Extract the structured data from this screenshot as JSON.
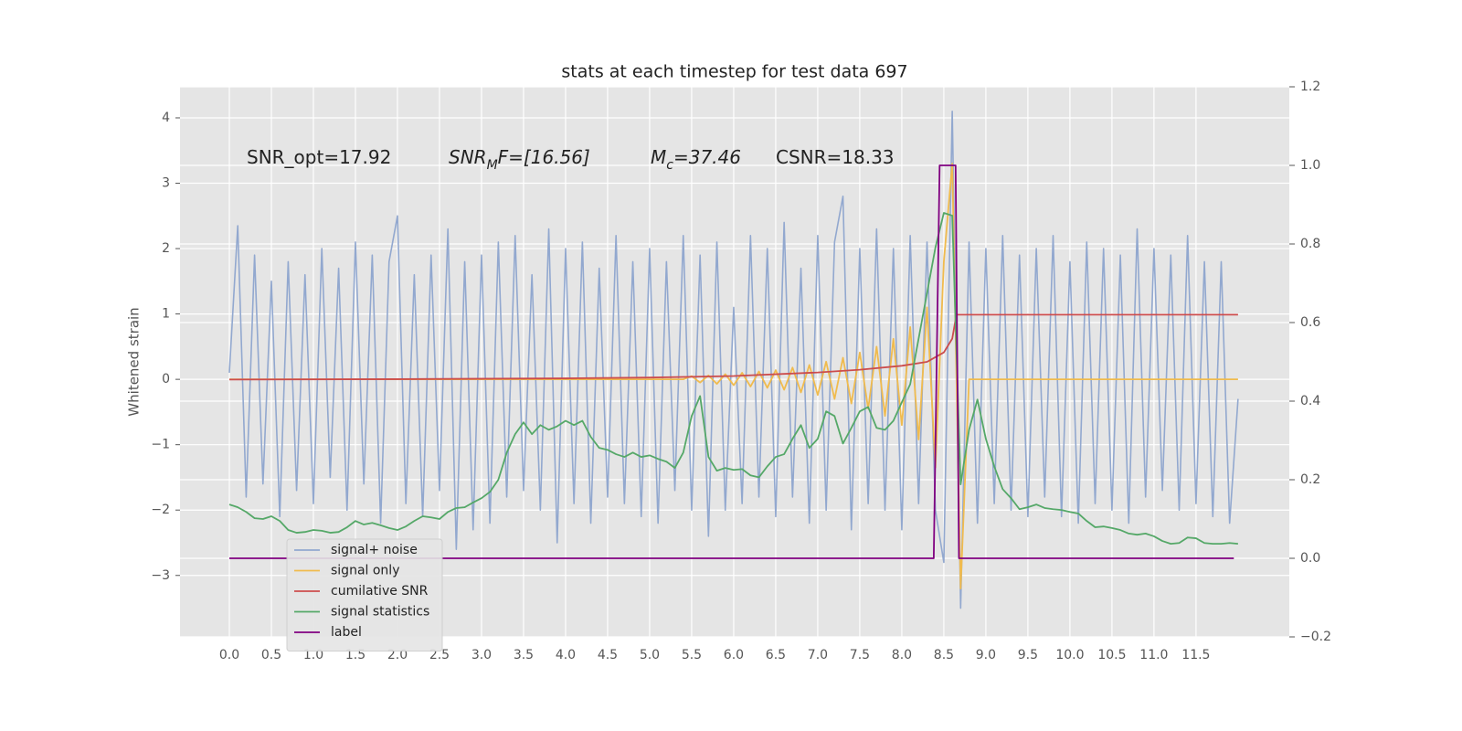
{
  "chart_data": {
    "type": "line",
    "title": "stats at each timestep for test data 697",
    "ylabel": "Whitened strain",
    "grid": true,
    "legend": "lower left",
    "xlim": [
      -0.587,
      12.61
    ],
    "ylim": [
      -3.94,
      4.475
    ],
    "y2lim": [
      -0.2,
      1.2
    ],
    "xticks": [
      {
        "value": 0,
        "label": "0.0"
      },
      0.5,
      {
        "value": 1,
        "label": "1.0"
      },
      1.5,
      {
        "value": 2,
        "label": "2.0"
      },
      2.5,
      {
        "value": 3,
        "label": "3.0"
      },
      3.5,
      {
        "value": 4,
        "label": "4.0"
      },
      4.5,
      {
        "value": 5,
        "label": "5.0"
      },
      5.5,
      {
        "value": 6,
        "label": "6.0"
      },
      6.5,
      {
        "value": 7,
        "label": "7.0"
      },
      7.5,
      {
        "value": 8,
        "label": "8.0"
      },
      8.5,
      {
        "value": 9,
        "label": "9.0"
      },
      9.5,
      {
        "value": 10,
        "label": "10.0"
      },
      10.5,
      {
        "value": 11,
        "label": "11.0"
      },
      11.5
    ],
    "yticks": [
      {
        "value": -3,
        "label": "−3"
      },
      {
        "value": -2,
        "label": "−2"
      },
      {
        "value": -1,
        "label": "−1"
      },
      0,
      1,
      2,
      3,
      4
    ],
    "y2ticks": [
      {
        "value": -0.2,
        "label": "−0.2"
      },
      {
        "value": 0,
        "label": "0.0"
      },
      0.2,
      0.4,
      0.6,
      0.8,
      {
        "value": 1,
        "label": "1.0"
      },
      1.2
    ],
    "annotations": [
      {
        "text": "SNR_opt=17.92"
      },
      {
        "text": "SNR",
        "sub": "M",
        "rest": "F=[16.56]",
        "italic": true
      },
      {
        "text": "M",
        "sub": "c",
        "rest": "=37.46",
        "italic": true
      },
      {
        "text": "CSNR=18.33"
      }
    ],
    "x": [
      0.0,
      0.1,
      0.2,
      0.3,
      0.4,
      0.5,
      0.6,
      0.7,
      0.8,
      0.9,
      1.0,
      1.1,
      1.2,
      1.3,
      1.4,
      1.5,
      1.6,
      1.7,
      1.8,
      1.9,
      2.0,
      2.1,
      2.2,
      2.3,
      2.4,
      2.5,
      2.6,
      2.7,
      2.8,
      2.9,
      3.0,
      3.1,
      3.2,
      3.3,
      3.4,
      3.5,
      3.6,
      3.7,
      3.8,
      3.9,
      4.0,
      4.1,
      4.2,
      4.3,
      4.4,
      4.5,
      4.6,
      4.7,
      4.8,
      4.9,
      5.0,
      5.1,
      5.2,
      5.3,
      5.4,
      5.5,
      5.6,
      5.7,
      5.8,
      5.9,
      6.0,
      6.1,
      6.2,
      6.3,
      6.4,
      6.5,
      6.6,
      6.7,
      6.8,
      6.9,
      7.0,
      7.1,
      7.2,
      7.3,
      7.4,
      7.5,
      7.6,
      7.7,
      7.8,
      7.9,
      8.0,
      8.1,
      8.2,
      8.3,
      8.4,
      8.5,
      8.6,
      8.7,
      8.8,
      8.9,
      9.0,
      9.1,
      9.2,
      9.3,
      9.4,
      9.5,
      9.6,
      9.7,
      9.8,
      9.9,
      10.0,
      10.1,
      10.2,
      10.3,
      10.4,
      10.5,
      10.6,
      10.7,
      10.8,
      10.9,
      11.0,
      11.1,
      11.2,
      11.3,
      11.4,
      11.5,
      11.6,
      11.7,
      11.8,
      11.9,
      12.0
    ],
    "series": [
      {
        "name": "signal+ noise",
        "color": "#92a8cf",
        "values": [
          0.1,
          2.35,
          -1.8,
          1.9,
          -1.6,
          1.5,
          -2.1,
          1.8,
          -1.7,
          1.6,
          -1.9,
          2.0,
          -1.5,
          1.7,
          -2.0,
          2.1,
          -1.6,
          1.9,
          -2.2,
          1.8,
          2.5,
          -1.9,
          1.6,
          -2.1,
          1.9,
          -1.7,
          2.3,
          -2.6,
          1.8,
          -2.3,
          1.9,
          -2.2,
          2.1,
          -1.8,
          2.2,
          -1.7,
          1.6,
          -2.0,
          2.3,
          -2.5,
          2.0,
          -1.9,
          2.1,
          -2.2,
          1.7,
          -1.8,
          2.2,
          -1.9,
          1.8,
          -2.1,
          2.0,
          -2.2,
          1.8,
          -1.7,
          2.2,
          -2.0,
          1.9,
          -2.4,
          2.1,
          -2.0,
          1.1,
          -1.9,
          2.2,
          -1.8,
          2.0,
          -2.1,
          2.4,
          -1.8,
          1.7,
          -2.2,
          2.2,
          -2.0,
          2.1,
          2.8,
          -2.3,
          2.0,
          -1.9,
          2.3,
          -2.0,
          2.0,
          -2.3,
          2.2,
          -1.9,
          2.1,
          -2.0,
          -2.8,
          4.1,
          -3.5,
          2.1,
          -2.2,
          2.0,
          -1.9,
          2.2,
          -2.0,
          1.9,
          -2.1,
          2.0,
          -1.8,
          2.2,
          -2.1,
          1.8,
          -2.2,
          2.1,
          -1.9,
          2.0,
          -2.0,
          1.9,
          -2.2,
          2.3,
          -1.8,
          2.0,
          -1.7,
          1.9,
          -2.0,
          2.2,
          -1.9,
          1.8,
          -2.1,
          1.8,
          -2.2,
          -0.3
        ]
      },
      {
        "name": "signal only",
        "color": "#f0bb4e",
        "values": [
          0,
          0,
          0,
          0,
          0,
          0,
          0,
          0,
          0,
          0,
          0,
          0,
          0,
          0,
          0,
          0,
          0,
          0,
          0,
          0,
          0,
          0,
          0,
          0,
          0,
          0,
          0,
          0,
          0,
          0,
          0,
          0,
          0,
          0,
          0,
          0,
          0,
          0,
          0,
          0,
          0,
          0,
          0,
          0,
          0,
          0,
          0,
          0,
          0,
          0,
          0,
          0,
          0,
          0,
          0,
          0.05,
          -0.05,
          0.06,
          -0.07,
          0.08,
          -0.09,
          0.1,
          -0.11,
          0.12,
          -0.13,
          0.14,
          -0.16,
          0.18,
          -0.2,
          0.22,
          -0.24,
          0.27,
          -0.3,
          0.33,
          -0.37,
          0.41,
          -0.45,
          0.5,
          -0.56,
          0.62,
          -0.7,
          0.8,
          -0.92,
          1.1,
          -1.35,
          1.8,
          3.3,
          -3.2,
          0,
          0,
          0,
          0,
          0,
          0,
          0,
          0,
          0,
          0,
          0,
          0,
          0,
          0,
          0,
          0,
          0,
          0,
          0,
          0,
          0,
          0,
          0,
          0,
          0,
          0,
          0,
          0,
          0,
          0,
          0,
          0,
          0
        ]
      },
      {
        "name": "cumilative SNR",
        "color": "#cc4c4c",
        "axis": "y2",
        "x": [
          0,
          2,
          4,
          5,
          6,
          7,
          7.5,
          8,
          8.3,
          8.5,
          8.6,
          8.65,
          8.7,
          12
        ],
        "values": [
          0.455,
          0.456,
          0.458,
          0.46,
          0.464,
          0.473,
          0.48,
          0.49,
          0.5,
          0.524,
          0.559,
          0.62,
          0.62,
          0.62
        ]
      },
      {
        "name": "signal statistics",
        "color": "#55a868",
        "axis": "y2",
        "values": [
          0.137,
          0.13,
          0.118,
          0.102,
          0.1,
          0.107,
          0.095,
          0.072,
          0.065,
          0.067,
          0.072,
          0.07,
          0.065,
          0.067,
          0.079,
          0.095,
          0.086,
          0.09,
          0.084,
          0.077,
          0.072,
          0.081,
          0.095,
          0.107,
          0.104,
          0.1,
          0.118,
          0.128,
          0.13,
          0.142,
          0.153,
          0.169,
          0.2,
          0.269,
          0.316,
          0.346,
          0.316,
          0.339,
          0.327,
          0.336,
          0.35,
          0.339,
          0.35,
          0.309,
          0.281,
          0.276,
          0.265,
          0.258,
          0.269,
          0.258,
          0.262,
          0.253,
          0.246,
          0.23,
          0.269,
          0.362,
          0.413,
          0.258,
          0.223,
          0.23,
          0.225,
          0.227,
          0.211,
          0.206,
          0.234,
          0.258,
          0.265,
          0.304,
          0.339,
          0.281,
          0.304,
          0.374,
          0.362,
          0.292,
          0.332,
          0.374,
          0.385,
          0.332,
          0.327,
          0.35,
          0.397,
          0.443,
          0.559,
          0.675,
          0.791,
          0.879,
          0.872,
          0.188,
          0.327,
          0.404,
          0.304,
          0.234,
          0.176,
          0.153,
          0.125,
          0.13,
          0.137,
          0.128,
          0.125,
          0.123,
          0.118,
          0.114,
          0.095,
          0.079,
          0.081,
          0.077,
          0.072,
          0.063,
          0.06,
          0.063,
          0.056,
          0.044,
          0.037,
          0.039,
          0.053,
          0.051,
          0.039,
          0.037,
          0.037,
          0.039,
          0.037
        ]
      },
      {
        "name": "label",
        "color": "#800080",
        "axis": "y2",
        "x": [
          0,
          8.38,
          8.45,
          8.64,
          8.68,
          11.95
        ],
        "values": [
          0,
          0,
          1,
          1,
          0,
          0
        ]
      }
    ]
  }
}
